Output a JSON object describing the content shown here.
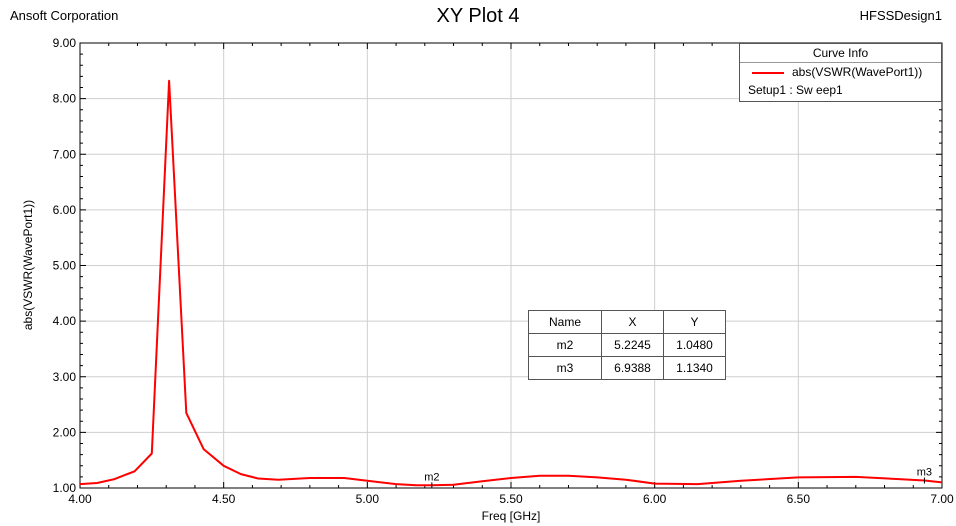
{
  "header": {
    "company": "Ansoft Corporation",
    "title": "XY Plot 4",
    "design": "HFSSDesign1"
  },
  "legend": {
    "title": "Curve Info",
    "curve_label": "abs(VSWR(WavePort1))",
    "setup_label": "Setup1 : Sw eep1"
  },
  "marker_table": {
    "headers": [
      "Name",
      "X",
      "Y"
    ],
    "rows": [
      [
        "m2",
        "5.2245",
        "1.0480"
      ],
      [
        "m3",
        "6.9388",
        "1.1340"
      ]
    ]
  },
  "chart_data": {
    "type": "line",
    "title": "XY Plot 4",
    "xlabel": "Freq [GHz]",
    "ylabel": "abs(VSWR(WavePort1))",
    "xlim": [
      4.0,
      7.0
    ],
    "ylim": [
      1.0,
      9.0
    ],
    "x_ticks": [
      "4.00",
      "4.50",
      "5.00",
      "5.50",
      "6.00",
      "6.50",
      "7.00"
    ],
    "y_ticks": [
      "1.00",
      "2.00",
      "3.00",
      "4.00",
      "5.00",
      "6.00",
      "7.00",
      "8.00",
      "9.00"
    ],
    "grid": true,
    "legend_position": "top-right",
    "series": [
      {
        "name": "abs(VSWR(WavePort1))",
        "color": "#ff0000",
        "x": [
          4.0,
          4.06,
          4.12,
          4.19,
          4.25,
          4.31,
          4.37,
          4.43,
          4.5,
          4.56,
          4.62,
          4.69,
          4.8,
          4.92,
          5.0,
          5.1,
          5.17,
          5.2245,
          5.3,
          5.4,
          5.5,
          5.6,
          5.7,
          5.8,
          5.9,
          6.0,
          6.15,
          6.3,
          6.5,
          6.7,
          6.85,
          6.9388,
          7.0
        ],
        "y": [
          1.07,
          1.09,
          1.16,
          1.3,
          1.62,
          8.32,
          2.35,
          1.7,
          1.4,
          1.25,
          1.17,
          1.15,
          1.18,
          1.18,
          1.13,
          1.07,
          1.05,
          1.048,
          1.06,
          1.12,
          1.18,
          1.22,
          1.22,
          1.19,
          1.15,
          1.08,
          1.07,
          1.13,
          1.19,
          1.2,
          1.16,
          1.134,
          1.1
        ]
      }
    ],
    "markers": [
      {
        "name": "m2",
        "x": 5.2245,
        "y": 1.048
      },
      {
        "name": "m3",
        "x": 6.9388,
        "y": 1.134
      }
    ]
  }
}
